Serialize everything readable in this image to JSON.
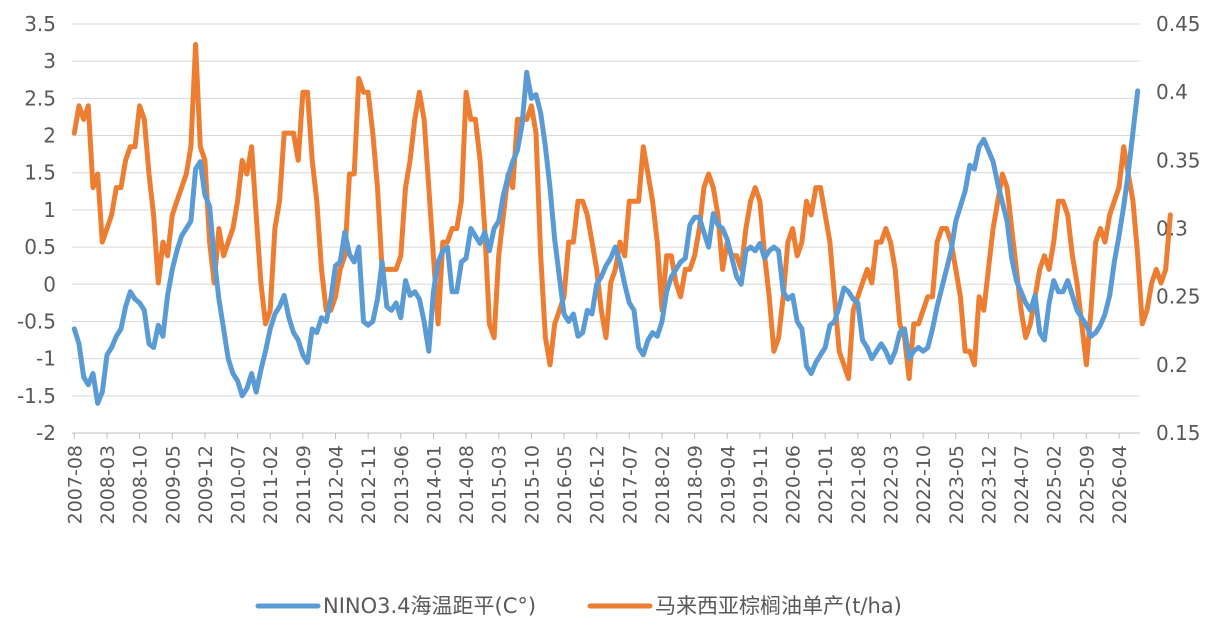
{
  "chart_data": {
    "type": "line",
    "x_labels": [
      "2007-08",
      "2008-03",
      "2008-10",
      "2009-05",
      "2009-12",
      "2010-07",
      "2011-02",
      "2011-09",
      "2012-04",
      "2012-11",
      "2013-06",
      "2014-01",
      "2014-08",
      "2015-03",
      "2015-10",
      "2016-05",
      "2016-12",
      "2017-07",
      "2018-02",
      "2018-09",
      "2019-04",
      "2019-11",
      "2020-06",
      "2021-01",
      "2021-08",
      "2022-03",
      "2022-10",
      "2023-05",
      "2023-12",
      "2024-07",
      "2025-02",
      "2025-09",
      "2026-04"
    ],
    "y_left": {
      "min": -2,
      "max": 3.5,
      "ticks": [
        "3.5",
        "3",
        "2.5",
        "2",
        "1.5",
        "1",
        "0.5",
        "0",
        "-0.5",
        "-1",
        "-1.5",
        "-2"
      ]
    },
    "y_right": {
      "min": 0.15,
      "max": 0.45,
      "ticks": [
        "0.45",
        "0.4",
        "0.35",
        "0.3",
        "0.25",
        "0.2",
        "0.15"
      ]
    },
    "legend_position": "bottom",
    "series": [
      {
        "name": "NINO3.4海温距平(C°)",
        "axis": "left",
        "color": "#5b9bd5",
        "values": [
          -0.6,
          -0.8,
          -1.25,
          -1.35,
          -1.2,
          -1.6,
          -1.45,
          -0.95,
          -0.85,
          -0.7,
          -0.6,
          -0.3,
          -0.1,
          -0.2,
          -0.25,
          -0.35,
          -0.8,
          -0.85,
          -0.55,
          -0.7,
          -0.15,
          0.2,
          0.45,
          0.65,
          0.75,
          0.85,
          1.55,
          1.65,
          1.2,
          1.05,
          0.35,
          -0.2,
          -0.6,
          -1.0,
          -1.2,
          -1.3,
          -1.5,
          -1.4,
          -1.2,
          -1.45,
          -1.15,
          -0.9,
          -0.6,
          -0.4,
          -0.3,
          -0.15,
          -0.45,
          -0.65,
          -0.75,
          -0.95,
          -1.05,
          -0.6,
          -0.65,
          -0.45,
          -0.5,
          -0.2,
          0.25,
          0.3,
          0.7,
          0.4,
          0.3,
          0.5,
          -0.5,
          -0.55,
          -0.5,
          -0.2,
          0.3,
          -0.3,
          -0.35,
          -0.25,
          -0.45,
          0.05,
          -0.15,
          -0.1,
          -0.2,
          -0.5,
          -0.9,
          -0.1,
          0.3,
          0.45,
          0.5,
          -0.1,
          -0.1,
          0.3,
          0.35,
          0.75,
          0.65,
          0.55,
          0.7,
          0.45,
          0.75,
          0.85,
          1.2,
          1.45,
          1.65,
          1.8,
          2.15,
          2.85,
          2.5,
          2.55,
          2.3,
          1.85,
          1.3,
          0.6,
          0.1,
          -0.4,
          -0.5,
          -0.4,
          -0.7,
          -0.65,
          -0.35,
          -0.4,
          0.0,
          0.1,
          0.25,
          0.35,
          0.5,
          0.3,
          0.0,
          -0.25,
          -0.35,
          -0.85,
          -0.95,
          -0.75,
          -0.65,
          -0.7,
          -0.5,
          -0.1,
          0.1,
          0.2,
          0.3,
          0.35,
          0.8,
          0.9,
          0.9,
          0.7,
          0.5,
          0.95,
          0.8,
          0.75,
          0.6,
          0.35,
          0.1,
          0.0,
          0.45,
          0.5,
          0.45,
          0.55,
          0.35,
          0.45,
          0.5,
          0.45,
          -0.1,
          -0.2,
          -0.15,
          -0.5,
          -0.6,
          -1.1,
          -1.2,
          -1.05,
          -0.95,
          -0.85,
          -0.55,
          -0.5,
          -0.3,
          -0.05,
          -0.1,
          -0.2,
          -0.25,
          -0.75,
          -0.85,
          -1.0,
          -0.9,
          -0.8,
          -0.9,
          -1.05,
          -0.9,
          -0.65,
          -0.6,
          -1.0,
          -0.9,
          -0.85,
          -0.9,
          -0.85,
          -0.6,
          -0.3,
          -0.05,
          0.2,
          0.45,
          0.85,
          1.05,
          1.25,
          1.6,
          1.55,
          1.85,
          1.95,
          1.8,
          1.65,
          1.35,
          1.1,
          0.85,
          0.35,
          0.05,
          -0.1,
          -0.25,
          -0.35,
          -0.15,
          -0.65,
          -0.75,
          -0.25,
          0.05,
          -0.1,
          -0.1,
          0.05,
          -0.15,
          -0.35,
          -0.45,
          -0.55,
          -0.7,
          -0.65,
          -0.55,
          -0.4,
          -0.15,
          0.3,
          0.65,
          1.05,
          1.5,
          2.05,
          2.6
        ]
      },
      {
        "name": "马来西亚棕榈油单产(t/ha)",
        "axis": "right",
        "color": "#ed7d31",
        "values": [
          0.37,
          0.39,
          0.38,
          0.39,
          0.33,
          0.34,
          0.29,
          0.3,
          0.31,
          0.33,
          0.33,
          0.35,
          0.36,
          0.36,
          0.39,
          0.38,
          0.34,
          0.31,
          0.26,
          0.29,
          0.28,
          0.31,
          0.32,
          0.33,
          0.34,
          0.36,
          0.435,
          0.36,
          0.35,
          0.29,
          0.26,
          0.3,
          0.28,
          0.29,
          0.3,
          0.32,
          0.35,
          0.34,
          0.36,
          0.31,
          0.26,
          0.23,
          0.24,
          0.3,
          0.32,
          0.37,
          0.37,
          0.37,
          0.35,
          0.4,
          0.4,
          0.35,
          0.32,
          0.27,
          0.24,
          0.24,
          0.25,
          0.27,
          0.28,
          0.34,
          0.34,
          0.41,
          0.4,
          0.4,
          0.37,
          0.33,
          0.27,
          0.27,
          0.27,
          0.27,
          0.28,
          0.33,
          0.35,
          0.38,
          0.4,
          0.38,
          0.33,
          0.28,
          0.23,
          0.29,
          0.29,
          0.3,
          0.3,
          0.32,
          0.4,
          0.38,
          0.38,
          0.35,
          0.3,
          0.23,
          0.22,
          0.28,
          0.31,
          0.34,
          0.33,
          0.38,
          0.38,
          0.38,
          0.39,
          0.37,
          0.28,
          0.22,
          0.2,
          0.23,
          0.24,
          0.25,
          0.29,
          0.29,
          0.32,
          0.32,
          0.31,
          0.29,
          0.27,
          0.24,
          0.22,
          0.26,
          0.27,
          0.29,
          0.28,
          0.32,
          0.32,
          0.32,
          0.36,
          0.34,
          0.32,
          0.29,
          0.24,
          0.28,
          0.28,
          0.26,
          0.25,
          0.27,
          0.27,
          0.28,
          0.3,
          0.33,
          0.34,
          0.33,
          0.31,
          0.27,
          0.29,
          0.28,
          0.28,
          0.27,
          0.3,
          0.32,
          0.33,
          0.32,
          0.28,
          0.25,
          0.21,
          0.22,
          0.25,
          0.29,
          0.3,
          0.28,
          0.29,
          0.32,
          0.31,
          0.33,
          0.33,
          0.31,
          0.29,
          0.25,
          0.21,
          0.2,
          0.19,
          0.24,
          0.25,
          0.26,
          0.27,
          0.26,
          0.29,
          0.29,
          0.3,
          0.29,
          0.27,
          0.23,
          0.22,
          0.19,
          0.23,
          0.23,
          0.24,
          0.25,
          0.25,
          0.29,
          0.3,
          0.3,
          0.29,
          0.27,
          0.25,
          0.21,
          0.21,
          0.2,
          0.25,
          0.24,
          0.27,
          0.3,
          0.32,
          0.34,
          0.33,
          0.3,
          0.27,
          0.24,
          0.22,
          0.23,
          0.25,
          0.27,
          0.28,
          0.27,
          0.29,
          0.32,
          0.32,
          0.31,
          0.28,
          0.26,
          0.23,
          0.2,
          0.24,
          0.29,
          0.3,
          0.29,
          0.31,
          0.32,
          0.33,
          0.36,
          0.34,
          0.32,
          0.28,
          0.23,
          0.24,
          0.26,
          0.27,
          0.26,
          0.27,
          0.31
        ]
      }
    ]
  }
}
